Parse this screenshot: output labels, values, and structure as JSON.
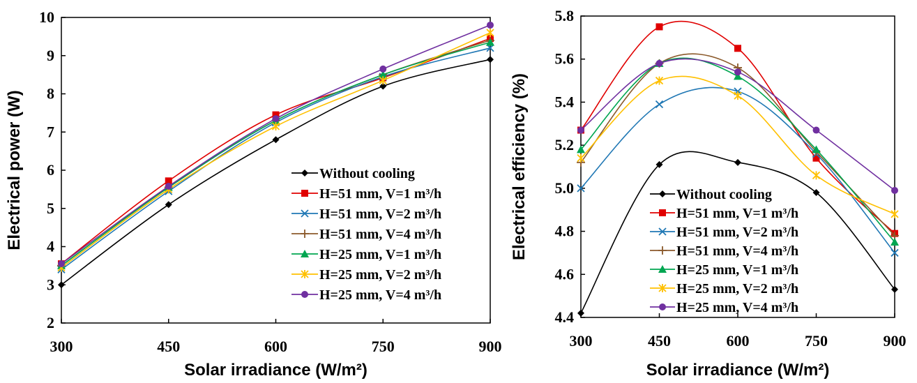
{
  "chart_data": [
    {
      "type": "line",
      "xlabel": "Solar irradiance (W/m²)",
      "ylabel": "Electrical power (W)",
      "x": [
        300,
        450,
        600,
        750,
        900
      ],
      "xticks": [
        "300",
        "450",
        "600",
        "750",
        "900"
      ],
      "yticks": [
        "2",
        "3",
        "4",
        "5",
        "6",
        "7",
        "8",
        "9",
        "10"
      ],
      "xlim": [
        300,
        900
      ],
      "ylim": [
        2,
        10
      ],
      "grid": false,
      "legend_position": "bottom-right",
      "series": [
        {
          "name": "Without cooling",
          "values": [
            3.0,
            5.1,
            6.8,
            8.2,
            8.9
          ],
          "color": "#000000",
          "marker": "diamond"
        },
        {
          "name": "H=51 mm, V=1 m³/h",
          "values": [
            3.55,
            5.72,
            7.45,
            8.42,
            9.45
          ],
          "color": "#e00000",
          "marker": "square"
        },
        {
          "name": "H=51 mm, V=2 m³/h",
          "values": [
            3.4,
            5.45,
            7.25,
            8.45,
            9.2
          ],
          "color": "#1f77b4",
          "marker": "x"
        },
        {
          "name": "H=51 mm, V=4 m³/h",
          "values": [
            3.5,
            5.55,
            7.3,
            8.5,
            9.4
          ],
          "color": "#8b5a2b",
          "marker": "plus"
        },
        {
          "name": "H=25 mm, V=1 m³/h",
          "values": [
            3.5,
            5.55,
            7.3,
            8.5,
            9.35
          ],
          "color": "#00a651",
          "marker": "triangle"
        },
        {
          "name": "H=25 mm, V=2 m³/h",
          "values": [
            3.45,
            5.5,
            7.15,
            8.35,
            9.6
          ],
          "color": "#ffc000",
          "marker": "asterisk"
        },
        {
          "name": "H=25 mm, V=4 m³/h",
          "values": [
            3.55,
            5.58,
            7.35,
            8.65,
            9.8
          ],
          "color": "#7030a0",
          "marker": "circle"
        }
      ]
    },
    {
      "type": "line",
      "xlabel": "Solar irradiance (W/m²)",
      "ylabel": "Electrical efficiency (%)",
      "x": [
        300,
        450,
        600,
        750,
        900
      ],
      "xticks": [
        "300",
        "450",
        "600",
        "750",
        "900"
      ],
      "yticks": [
        "4.4",
        "4.6",
        "4.8",
        "5.0",
        "5.2",
        "5.4",
        "5.6",
        "5.8"
      ],
      "xlim": [
        300,
        900
      ],
      "ylim": [
        4.4,
        5.8
      ],
      "grid": false,
      "legend_position": "bottom-center",
      "series": [
        {
          "name": "Without cooling",
          "values": [
            4.42,
            5.11,
            5.12,
            4.98,
            4.53
          ],
          "color": "#000000",
          "marker": "diamond"
        },
        {
          "name": "H=51 mm, V=1 m³/h",
          "values": [
            5.27,
            5.75,
            5.65,
            5.14,
            4.79
          ],
          "color": "#e00000",
          "marker": "square"
        },
        {
          "name": "H=51 mm, V=2 m³/h",
          "values": [
            5.0,
            5.39,
            5.45,
            5.16,
            4.7
          ],
          "color": "#1f77b4",
          "marker": "x"
        },
        {
          "name": "H=51 mm, V=4 m³/h",
          "values": [
            5.12,
            5.58,
            5.56,
            5.17,
            4.78
          ],
          "color": "#8b5a2b",
          "marker": "plus"
        },
        {
          "name": "H=25 mm, V=1 m³/h",
          "values": [
            5.18,
            5.58,
            5.52,
            5.18,
            4.75
          ],
          "color": "#00a651",
          "marker": "triangle"
        },
        {
          "name": "H=25 mm, V=2 m³/h",
          "values": [
            5.14,
            5.5,
            5.43,
            5.06,
            4.88
          ],
          "color": "#ffc000",
          "marker": "asterisk"
        },
        {
          "name": "H=25 mm, V=4 m³/h",
          "values": [
            5.27,
            5.58,
            5.54,
            5.27,
            4.99
          ],
          "color": "#7030a0",
          "marker": "circle"
        }
      ]
    }
  ]
}
